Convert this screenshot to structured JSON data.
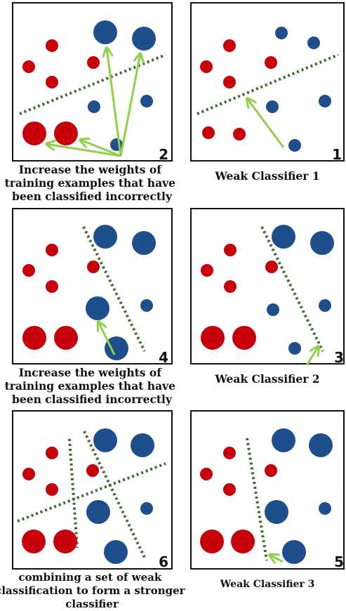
{
  "panels": [
    {
      "id": 2,
      "number": "2",
      "caption": [
        "Increase the weights of",
        "training examples that have",
        "been classified incorrectly"
      ]
    },
    {
      "id": 1,
      "number": "1",
      "caption": [
        "Weak Classifier 1"
      ]
    },
    {
      "id": 4,
      "number": "4",
      "caption": [
        "Increase the weights of",
        "training examples that have",
        "been classified incorrectly"
      ]
    },
    {
      "id": 3,
      "number": "3",
      "caption": [
        "Weak Classifier 2"
      ]
    },
    {
      "id": 6,
      "number": "6",
      "caption": [
        "combining a set of weak",
        "classification to form a stronger",
        "classifier"
      ]
    },
    {
      "id": 5,
      "number": "5",
      "caption": [
        "Weak Classifier 3"
      ]
    }
  ],
  "colors": {
    "red_point": "#c8000c",
    "blue_point": "#1f4e8c",
    "boundary": "#3f6b2a",
    "arrow": "#8ed14a",
    "frame": "#111111"
  }
}
